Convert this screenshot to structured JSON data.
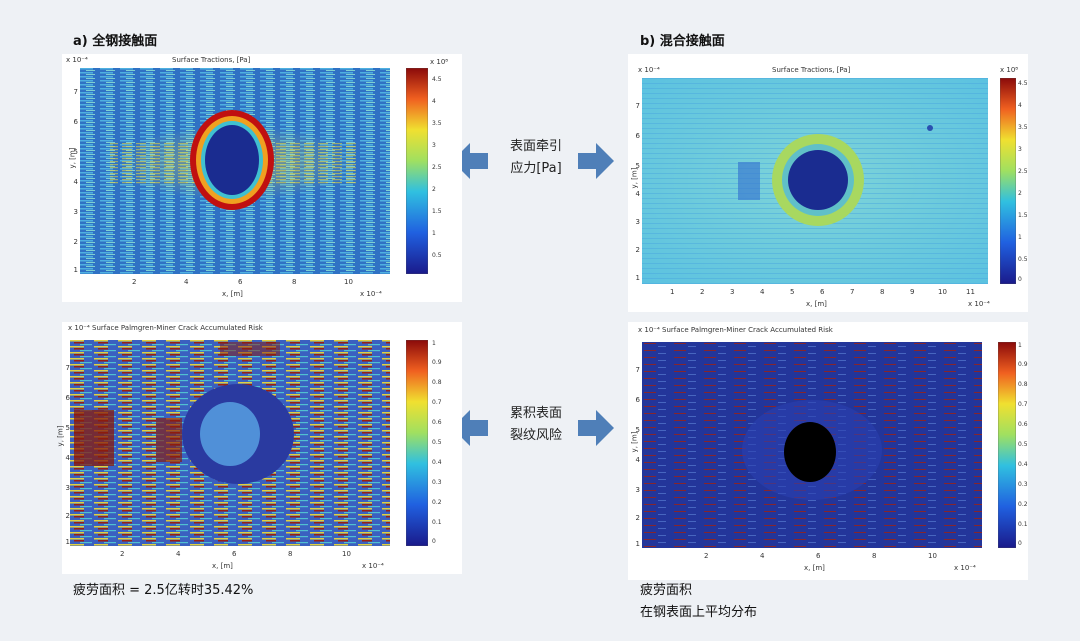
{
  "panel_a": {
    "title": "a) 全钢接触面",
    "top_plot_title": "Surface Tractions, [Pa]",
    "top_colorbar_scale": "x 10⁸",
    "top_colorbar_ticks": [
      "4.5",
      "4",
      "3.5",
      "3",
      "2.5",
      "2",
      "1.5",
      "1",
      "0.5"
    ],
    "top_x_ticks": [
      "2",
      "4",
      "6",
      "8",
      "10"
    ],
    "top_y_ticks": [
      "7",
      "6",
      "5",
      "4",
      "3",
      "2",
      "1"
    ],
    "top_x_label": "x, [m]",
    "top_y_label": "y, [m]",
    "top_x_scale": "x 10⁻⁴",
    "top_y_scale": "x 10⁻⁴",
    "bottom_plot_title": "x 10⁻⁴ Surface Palmgren-Miner Crack Accumulated Risk",
    "bottom_colorbar_ticks": [
      "1",
      "0.9",
      "0.8",
      "0.7",
      "0.6",
      "0.5",
      "0.4",
      "0.3",
      "0.2",
      "0.1",
      "0"
    ],
    "bottom_x_ticks": [
      "2",
      "4",
      "6",
      "8",
      "10"
    ],
    "bottom_y_ticks": [
      "7",
      "6",
      "5",
      "4",
      "3",
      "2",
      "1"
    ],
    "bottom_x_label": "x, [m]",
    "bottom_y_label": "y, [m]",
    "bottom_x_scale": "x 10⁻⁴",
    "caption": "疲劳面积 = 2.5亿转时35.42%"
  },
  "panel_b": {
    "title": "b) 混合接触面",
    "top_plot_title": "Surface Tractions, [Pa]",
    "top_colorbar_scale": "x 10⁸",
    "top_colorbar_ticks": [
      "4.5",
      "4",
      "3.5",
      "3",
      "2.5",
      "2",
      "1.5",
      "1",
      "0.5",
      "0"
    ],
    "top_x_ticks": [
      "1",
      "2",
      "3",
      "4",
      "5",
      "6",
      "7",
      "8",
      "9",
      "10",
      "11"
    ],
    "top_y_ticks": [
      "7",
      "6",
      "5",
      "4",
      "3",
      "2",
      "1"
    ],
    "top_x_label": "x, [m]",
    "top_y_label": "y, [m]",
    "top_x_scale": "x 10⁻⁴",
    "top_y_scale": "x 10⁻⁴",
    "bottom_plot_title": "x 10⁻⁴ Surface Palmgren-Miner Crack Accumulated Risk",
    "bottom_colorbar_ticks": [
      "1",
      "0.9",
      "0.8",
      "0.7",
      "0.6",
      "0.5",
      "0.4",
      "0.3",
      "0.2",
      "0.1",
      "0"
    ],
    "bottom_x_ticks": [
      "2",
      "4",
      "6",
      "8",
      "10"
    ],
    "bottom_y_ticks": [
      "7",
      "6",
      "5",
      "4",
      "3",
      "2",
      "1"
    ],
    "bottom_x_label": "x, [m]",
    "bottom_y_label": "y, [m]",
    "bottom_x_scale": "x 10⁻⁴",
    "caption_line1": "疲劳面积",
    "caption_line2": "在钢表面上平均分布"
  },
  "middle": {
    "label_top_line1": "表面牵引",
    "label_top_line2": "应力[Pa]",
    "label_bottom_line1": "累积表面",
    "label_bottom_line2": "裂纹风险"
  },
  "colors": {
    "arrow": "#4f7fb8",
    "background": "#eef1f5"
  }
}
